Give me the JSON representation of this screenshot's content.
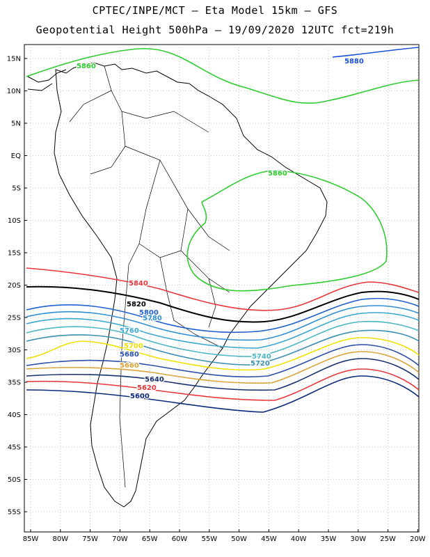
{
  "title_line1": "CPTEC/INPE/MCT –  Eta Model 15km – GFS",
  "title_line2": "Geopotential Height 500hPa – 19/09/2020 12UTC fct=219h",
  "lat_labels": [
    "15N",
    "10N",
    "5N",
    "EQ",
    "5S",
    "10S",
    "15S",
    "20S",
    "25S",
    "30S",
    "35S",
    "40S",
    "45S",
    "50S",
    "55S"
  ],
  "lon_labels": [
    "85W",
    "80W",
    "75W",
    "70W",
    "65W",
    "60W",
    "55W",
    "50W",
    "45W",
    "40W",
    "35W",
    "30W",
    "25W",
    "20W"
  ],
  "contours": [
    {
      "value": 5880,
      "color": "#1a4fd8"
    },
    {
      "value": 5860,
      "color": "#2ecc2e"
    },
    {
      "value": 5840,
      "color": "#e8373a"
    },
    {
      "value": 5820,
      "color": "#000000"
    },
    {
      "value": 5800,
      "color": "#1f5fd0"
    },
    {
      "value": 5780,
      "color": "#2f8fd6"
    },
    {
      "value": 5760,
      "color": "#3aa7d0"
    },
    {
      "value": 5740,
      "color": "#4cb6c4"
    },
    {
      "value": 5720,
      "color": "#3a8eb0"
    },
    {
      "value": 5700,
      "color": "#f0e000"
    },
    {
      "value": 5680,
      "color": "#2a4fa8"
    },
    {
      "value": 5660,
      "color": "#d9a43a"
    },
    {
      "value": 5640,
      "color": "#17306e"
    },
    {
      "value": 5620,
      "color": "#e8373a"
    },
    {
      "value": 5600,
      "color": "#0b2a7a"
    }
  ]
}
